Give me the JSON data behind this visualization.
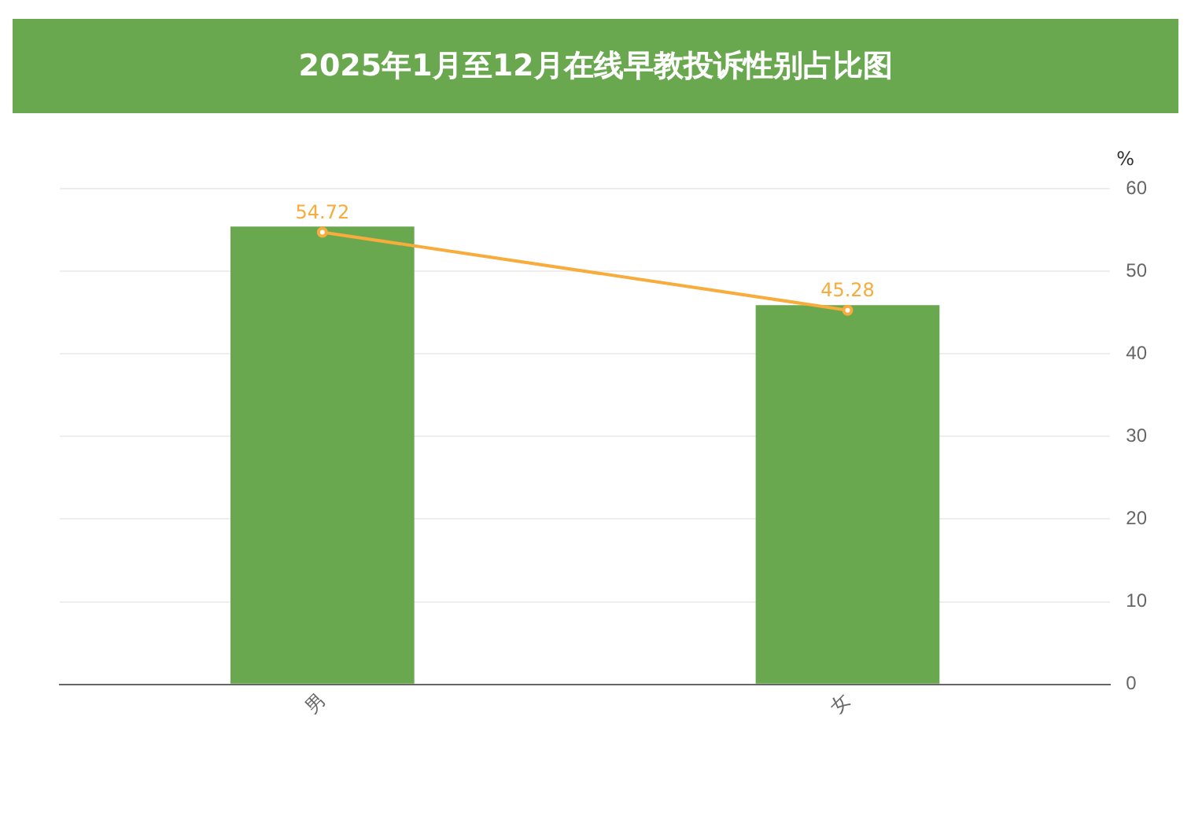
{
  "chart_data": {
    "type": "bar",
    "title": "2025年1月至12月在线早教投诉性别占比图",
    "ylabel": "%",
    "categories": [
      "男",
      "女"
    ],
    "series": [
      {
        "color": "#6aa84f",
        "values": [
          55.4,
          45.9
        ]
      },
      {
        "type": "line",
        "color": "#f7ac3b",
        "values": [
          54.72,
          45.28
        ],
        "value_labels": [
          "54.72",
          "45.28"
        ]
      }
    ],
    "ylim": [
      0,
      60
    ],
    "yticks": [
      0,
      10,
      20,
      30,
      40,
      50,
      60
    ],
    "grid": "y",
    "legend": false,
    "marker": "circle"
  }
}
